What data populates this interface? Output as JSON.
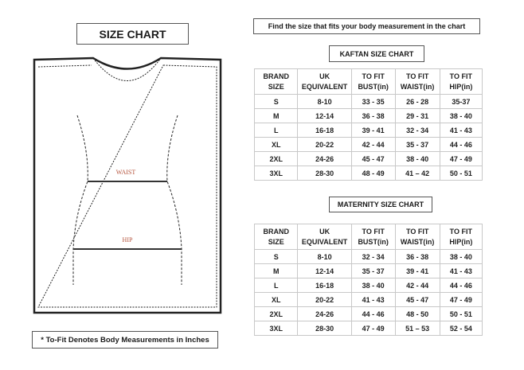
{
  "title": "SIZE CHART",
  "instruction": "Find the size that fits your body measurement in the chart",
  "figure": {
    "waist_label": "WAIST",
    "hip_label": "HIP"
  },
  "note": "* To-Fit Denotes Body Measurements in Inches",
  "headers": [
    "BRAND SIZE",
    "UK EQUIVALENT",
    "TO FIT BUST(in)",
    "TO FIT WAIST(in)",
    "TO FIT HIP(in)"
  ],
  "kaftan": {
    "title": "KAFTAN SIZE CHART",
    "rows": [
      [
        "S",
        "8-10",
        "33 - 35",
        "26 - 28",
        "35-37"
      ],
      [
        "M",
        "12-14",
        "36 - 38",
        "29 - 31",
        "38 - 40"
      ],
      [
        "L",
        "16-18",
        "39 - 41",
        "32 - 34",
        "41 - 43"
      ],
      [
        "XL",
        "20-22",
        "42 - 44",
        "35 - 37",
        "44 - 46"
      ],
      [
        "2XL",
        "24-26",
        "45 - 47",
        "38 - 40",
        "47 - 49"
      ],
      [
        "3XL",
        "28-30",
        "48 - 49",
        "41 – 42",
        "50 - 51"
      ]
    ]
  },
  "maternity": {
    "title": "MATERNITY SIZE CHART",
    "rows": [
      [
        "S",
        "8-10",
        "32 - 34",
        "36 - 38",
        "38 - 40"
      ],
      [
        "M",
        "12-14",
        "35 - 37",
        "39 - 41",
        "41 - 43"
      ],
      [
        "L",
        "16-18",
        "38 - 40",
        "42 - 44",
        "44 - 46"
      ],
      [
        "XL",
        "20-22",
        "41 - 43",
        "45 - 47",
        "47 - 49"
      ],
      [
        "2XL",
        "24-26",
        "44 - 46",
        "48 - 50",
        "50 - 51"
      ],
      [
        "3XL",
        "28-30",
        "47 - 49",
        "51 – 53",
        "52 - 54"
      ]
    ]
  }
}
